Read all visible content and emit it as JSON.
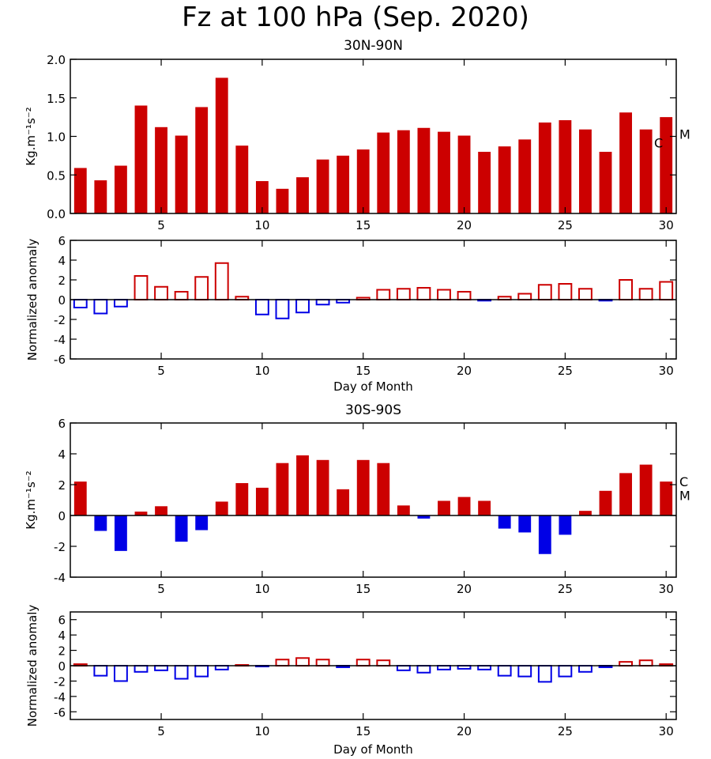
{
  "title": "Fz at 100 hPa (Sep. 2020)",
  "colors": {
    "positive": "#cc0000",
    "negative": "#0000e6",
    "axis": "#000000"
  },
  "chart_data": [
    {
      "type": "bar",
      "region": "30N-90N",
      "title": "30N-90N",
      "ylabel": "Kg.m⁻¹s⁻²",
      "xlabel": "",
      "style": "filled",
      "ylim": [
        0,
        2.0
      ],
      "yticks": [
        0.0,
        0.5,
        1.0,
        1.5,
        2.0
      ],
      "ytick_labels": [
        "0.0",
        "0.5",
        "1.0",
        "1.5",
        "2.0"
      ],
      "xlim": [
        0.5,
        30.5
      ],
      "xticks": [
        5,
        10,
        15,
        20,
        25,
        30
      ],
      "xtick_labels": [
        "5",
        "10",
        "15",
        "20",
        "25",
        "30"
      ],
      "days": [
        1,
        2,
        3,
        4,
        5,
        6,
        7,
        8,
        9,
        10,
        11,
        12,
        13,
        14,
        15,
        16,
        17,
        18,
        19,
        20,
        21,
        22,
        23,
        24,
        25,
        26,
        27,
        28,
        29,
        30
      ],
      "values": [
        0.59,
        0.43,
        0.62,
        1.4,
        1.12,
        1.01,
        1.38,
        1.76,
        0.88,
        0.42,
        0.32,
        0.47,
        0.7,
        0.75,
        0.83,
        1.05,
        1.08,
        1.11,
        1.06,
        1.01,
        0.8,
        0.87,
        0.96,
        1.18,
        1.21,
        1.09,
        0.8,
        1.31,
        1.09,
        1.25
      ],
      "markers": [
        {
          "label": "C",
          "value": 0.92
        },
        {
          "label": "M",
          "value": 1.03
        }
      ]
    },
    {
      "type": "bar",
      "region": "30N-90N",
      "title": "",
      "ylabel": "Normalized anomaly",
      "xlabel": "Day of Month",
      "style": "outline",
      "ylim": [
        -6,
        6
      ],
      "yticks": [
        -6,
        -4,
        -2,
        0,
        2,
        4,
        6
      ],
      "ytick_labels": [
        "-6",
        "-4",
        "-2",
        "0",
        "2",
        "4",
        "6"
      ],
      "xlim": [
        0.5,
        30.5
      ],
      "xticks": [
        5,
        10,
        15,
        20,
        25,
        30
      ],
      "xtick_labels": [
        "5",
        "10",
        "15",
        "20",
        "25",
        "30"
      ],
      "days": [
        1,
        2,
        3,
        4,
        5,
        6,
        7,
        8,
        9,
        10,
        11,
        12,
        13,
        14,
        15,
        16,
        17,
        18,
        19,
        20,
        21,
        22,
        23,
        24,
        25,
        26,
        27,
        28,
        29,
        30
      ],
      "values": [
        -0.8,
        -1.4,
        -0.7,
        2.4,
        1.3,
        0.8,
        2.3,
        3.7,
        0.3,
        -1.5,
        -1.9,
        -1.3,
        -0.5,
        -0.3,
        0.2,
        1.0,
        1.1,
        1.2,
        1.0,
        0.8,
        -0.1,
        0.3,
        0.6,
        1.5,
        1.6,
        1.1,
        -0.1,
        2.0,
        1.1,
        1.8
      ]
    },
    {
      "type": "bar",
      "region": "30S-90S",
      "title": "30S-90S",
      "ylabel": "Kg.m⁻¹s⁻²",
      "xlabel": "",
      "style": "filled",
      "ylim": [
        -4,
        6
      ],
      "yticks": [
        -4,
        -2,
        0,
        2,
        4,
        6
      ],
      "ytick_labels": [
        "-4",
        "-2",
        "0",
        "2",
        "4",
        "6"
      ],
      "xlim": [
        0.5,
        30.5
      ],
      "xticks": [
        5,
        10,
        15,
        20,
        25,
        30
      ],
      "xtick_labels": [
        "5",
        "10",
        "15",
        "20",
        "25",
        "30"
      ],
      "days": [
        1,
        2,
        3,
        4,
        5,
        6,
        7,
        8,
        9,
        10,
        11,
        12,
        13,
        14,
        15,
        16,
        17,
        18,
        19,
        20,
        21,
        22,
        23,
        24,
        25,
        26,
        27,
        28,
        29,
        30
      ],
      "values": [
        2.2,
        -1.0,
        -2.3,
        0.25,
        0.6,
        -1.7,
        -0.95,
        0.9,
        2.1,
        1.8,
        3.4,
        3.9,
        3.6,
        1.7,
        3.6,
        3.4,
        0.65,
        -0.2,
        0.95,
        1.2,
        0.95,
        -0.85,
        -1.1,
        -2.5,
        -1.25,
        0.3,
        1.6,
        2.75,
        3.3,
        2.2
      ],
      "markers": [
        {
          "label": "C",
          "value": 2.2
        },
        {
          "label": "M",
          "value": 1.3
        }
      ]
    },
    {
      "type": "bar",
      "region": "30S-90S",
      "title": "",
      "ylabel": "Normalized anomaly",
      "xlabel": "Day of Month",
      "style": "outline",
      "ylim": [
        -7,
        7
      ],
      "yticks": [
        -6,
        -4,
        -2,
        0,
        2,
        4,
        6
      ],
      "ytick_labels": [
        "-6",
        "-4",
        "-2",
        "0",
        "2",
        "4",
        "6"
      ],
      "xlim": [
        0.5,
        30.5
      ],
      "xticks": [
        5,
        10,
        15,
        20,
        25,
        30
      ],
      "xtick_labels": [
        "5",
        "10",
        "15",
        "20",
        "25",
        "30"
      ],
      "days": [
        1,
        2,
        3,
        4,
        5,
        6,
        7,
        8,
        9,
        10,
        11,
        12,
        13,
        14,
        15,
        16,
        17,
        18,
        19,
        20,
        21,
        22,
        23,
        24,
        25,
        26,
        27,
        28,
        29,
        30
      ],
      "values": [
        0.2,
        -1.3,
        -2.0,
        -0.8,
        -0.6,
        -1.7,
        -1.4,
        -0.5,
        0.1,
        -0.1,
        0.8,
        1.0,
        0.8,
        -0.2,
        0.8,
        0.7,
        -0.6,
        -0.9,
        -0.5,
        -0.4,
        -0.5,
        -1.3,
        -1.4,
        -2.1,
        -1.4,
        -0.8,
        -0.2,
        0.5,
        0.7,
        0.2
      ]
    }
  ]
}
